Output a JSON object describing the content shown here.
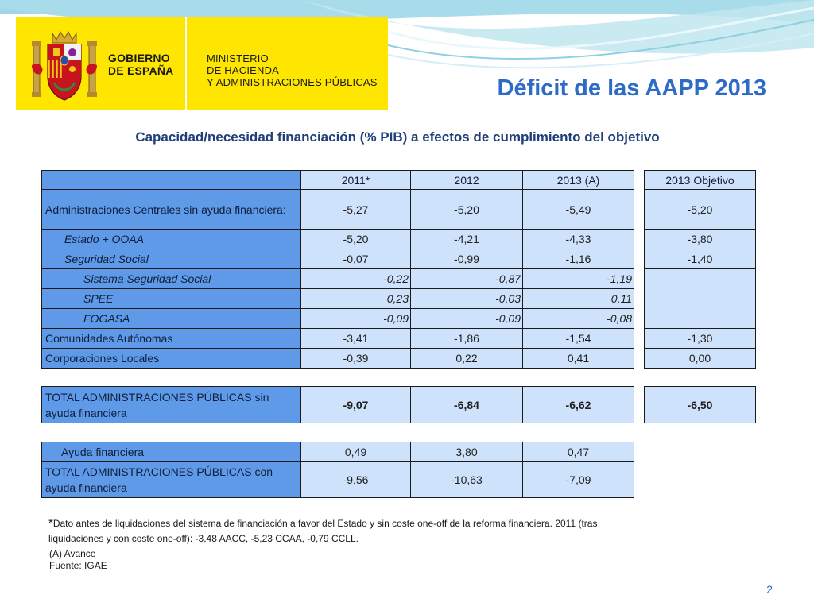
{
  "header": {
    "gobierno_lines": [
      "GOBIERNO",
      "DE ESPAÑA"
    ],
    "ministerio_lines": [
      "MINISTERIO",
      "DE HACIENDA",
      "Y ADMINISTRACIONES PÚBLICAS"
    ],
    "title": "Déficit de las AAPP 2013",
    "subtitle": "Capacidad/necesidad financiación (% PIB) a efectos de cumplimiento del objetivo"
  },
  "colors": {
    "title": "#2e6bc6",
    "label_cell": "#5e9ae8",
    "value_cell": "#cfe2fb",
    "logo_band": "#ffe600"
  },
  "main_table": {
    "columns": [
      "2011*",
      "2012",
      "2013 (A)"
    ],
    "objective_column": "2013 Objetivo",
    "rows": [
      {
        "label": "Administraciones Centrales sin ayuda financiera:",
        "values": [
          "-5,27",
          "-5,20",
          "-5,49"
        ],
        "objective": "-5,20"
      },
      {
        "label": "Estado + OOAA",
        "values": [
          "-5,20",
          "-4,21",
          "-4,33"
        ],
        "objective": "-3,80"
      },
      {
        "label": "Seguridad Social",
        "values": [
          "-0,07",
          "-0,99",
          "-1,16"
        ],
        "objective": "-1,40"
      },
      {
        "label": "Sistema Seguridad Social",
        "values": [
          "-0,22",
          "-0,87",
          "-1,19"
        ],
        "objective": ""
      },
      {
        "label": "SPEE",
        "values": [
          "0,23",
          "-0,03",
          "0,11"
        ],
        "objective": ""
      },
      {
        "label": "FOGASA",
        "values": [
          "-0,09",
          "-0,09",
          "-0,08"
        ],
        "objective": ""
      },
      {
        "label": "Comunidades Autónomas",
        "values": [
          "-3,41",
          "-1,86",
          "-1,54"
        ],
        "objective": "-1,30"
      },
      {
        "label": "Corporaciones Locales",
        "values": [
          "-0,39",
          "0,22",
          "0,41"
        ],
        "objective": "0,00"
      }
    ]
  },
  "total_table": {
    "label": "TOTAL ADMINISTRACIONES PÚBLICAS sin ayuda financiera",
    "values": [
      "-9,07",
      "-6,84",
      "-6,62"
    ],
    "objective": "-6,50"
  },
  "aid_table": {
    "rows": [
      {
        "label": "Ayuda financiera",
        "values": [
          "0,49",
          "3,80",
          "0,47"
        ]
      },
      {
        "label": "TOTAL ADMINISTRACIONES PÚBLICAS con ayuda financiera",
        "values": [
          "-9,56",
          "-10,63",
          "-7,09"
        ]
      }
    ]
  },
  "footnote": {
    "star": "*",
    "text": "Dato antes de liquidaciones del sistema de financiación a favor del Estado y sin coste one-off de la reforma financiera. 2011 (tras liquidaciones y con coste one-off): -3,48 AACC, -5,23 CCAA, -0,79 CCLL.",
    "avance": "(A) Avance",
    "source": "Fuente: IGAE"
  },
  "page_number": "2"
}
